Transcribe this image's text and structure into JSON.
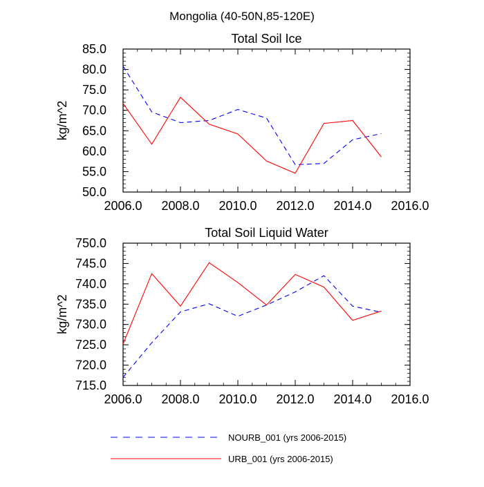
{
  "main_title": "Mongolia (40-50N,85-120E)",
  "colors": {
    "nourb": "#0000ff",
    "urb": "#ff0000",
    "axis": "#000000"
  },
  "legend": {
    "items": [
      {
        "series_key": "nourb",
        "label": "NOURB_001 (yrs 2006-2015)",
        "style": "dashed"
      },
      {
        "series_key": "urb",
        "label": "URB_001 (yrs 2006-2015)",
        "style": "solid"
      }
    ]
  },
  "chart_data": [
    {
      "type": "line",
      "title": "Total Soil Ice",
      "ylabel": "kg/m^2",
      "xlabel": "",
      "xlim": [
        2006,
        2016
      ],
      "ylim": [
        50,
        85
      ],
      "x_ticks": [
        "2006.0",
        "2008.0",
        "2010.0",
        "2012.0",
        "2014.0",
        "2016.0"
      ],
      "x_tick_values": [
        2006,
        2008,
        2010,
        2012,
        2014,
        2016
      ],
      "y_ticks": [
        "50.0",
        "55.0",
        "60.0",
        "65.0",
        "70.0",
        "75.0",
        "80.0",
        "85.0"
      ],
      "y_tick_values": [
        50,
        55,
        60,
        65,
        70,
        75,
        80,
        85
      ],
      "x": [
        2006,
        2007,
        2008,
        2009,
        2010,
        2011,
        2012,
        2013,
        2014,
        2015
      ],
      "series": [
        {
          "key": "nourb",
          "values": [
            80.8,
            69.6,
            67.0,
            67.5,
            70.2,
            68.1,
            56.7,
            57.0,
            62.8,
            64.3
          ]
        },
        {
          "key": "urb",
          "values": [
            71.7,
            61.7,
            73.2,
            66.6,
            64.2,
            57.6,
            54.6,
            66.8,
            67.5,
            58.6
          ]
        }
      ]
    },
    {
      "type": "line",
      "title": "Total Soil Liquid Water",
      "ylabel": "kg/m^2",
      "xlabel": "",
      "xlim": [
        2006,
        2016
      ],
      "ylim": [
        715,
        750
      ],
      "x_ticks": [
        "2006.0",
        "2008.0",
        "2010.0",
        "2012.0",
        "2014.0",
        "2016.0"
      ],
      "x_tick_values": [
        2006,
        2008,
        2010,
        2012,
        2014,
        2016
      ],
      "y_ticks": [
        "715.0",
        "720.0",
        "725.0",
        "730.0",
        "735.0",
        "740.0",
        "745.0",
        "750.0"
      ],
      "y_tick_values": [
        715,
        720,
        725,
        730,
        735,
        740,
        745,
        750
      ],
      "x": [
        2006,
        2007,
        2008,
        2009,
        2010,
        2011,
        2012,
        2013,
        2014,
        2015
      ],
      "series": [
        {
          "key": "nourb",
          "values": [
            717.0,
            725.5,
            733.1,
            735.1,
            732.0,
            734.8,
            738.0,
            742.0,
            734.5,
            733.0
          ]
        },
        {
          "key": "urb",
          "values": [
            725.2,
            742.5,
            734.5,
            745.2,
            740.3,
            734.8,
            742.3,
            739.2,
            731.0,
            733.3
          ]
        }
      ]
    }
  ]
}
